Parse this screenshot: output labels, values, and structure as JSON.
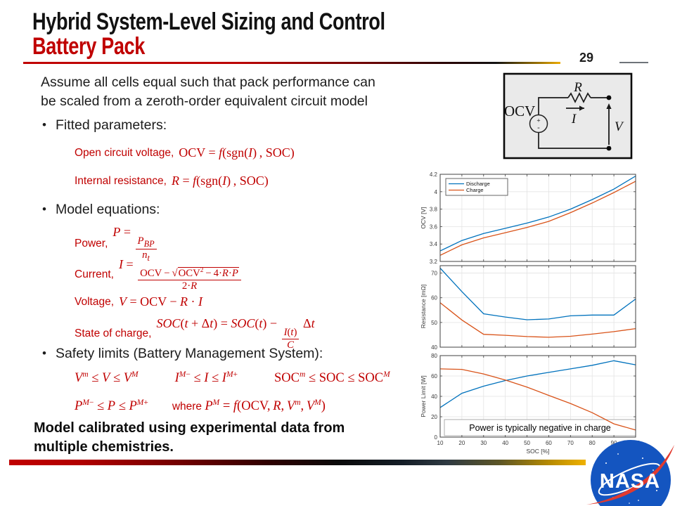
{
  "slide": {
    "title_line1": "Hybrid System-Level Sizing and Control",
    "title_line2": "Battery Pack",
    "page_number": "29",
    "intro_lines": [
      "Assume all cells equal such that pack performance can",
      "be scaled from a zeroth-order equivalent circuit model"
    ],
    "bullet_dot": "•",
    "bullet_fitted": "Fitted parameters:",
    "bullet_model": "Model equations:",
    "bullet_safety": "Safety limits (Battery Management System):",
    "closing_lines": [
      "Model calibrated using experimental data from",
      "multiple chemistries."
    ]
  },
  "equations": {
    "fitted": [
      {
        "label": "Open circuit voltage,",
        "math_html": "OCV = <i>f</i>(sgn(<i>I</i>)&#8201;, SOC)"
      },
      {
        "label": "Internal resistance,",
        "math_html": "<i>R</i> = <i>f</i>(sgn(<i>I</i>)&#8201;, SOC)"
      }
    ],
    "model": [
      {
        "label": "Power,",
        "math_html": "<i>P</i> = <span class='fr'><span class='nm'><i>P<sub>BP</sub></i></span><span class='dn'><i>n<sub>t</sub></i></span></span>"
      },
      {
        "label": "Current,",
        "math_html": "<i>I</i> = <span class='fr'><span class='nm'>OCV&#8201;&#8722;&#8201;<span class='sq'>&#8730;<span class='rd'>OCV<sup>2</sup>&#8201;&#8722;&#8201;4&#183;<i>R</i>&#183;<i>P</i></span></span></span><span class='dn'>2&#183;<i>R</i></span></span>"
      },
      {
        "label": "Voltage,",
        "math_html": "<i>V</i> = OCV &#8722; <i>R</i> &#183; <i>I</i>"
      },
      {
        "label": "State of charge,",
        "math_html": "<i>SOC</i>(<i>t</i> + &#916;<i>t</i>) = <i>SOC</i>(<i>t</i>) &#8722; <span class='fr'><span class='nm'><i>I</i>(<i>t</i>)</span><span class='dn'><i>C</i></span></span>&#8201;&#916;<i>t</i>"
      }
    ],
    "safety_row1": [
      "<i>V</i><sup><i>m</i></sup> &#8804; <i>V</i> &#8804; <i>V</i><sup><i>M</i></sup>",
      "<i>I</i><sup><i>M</i>&#8722;</sup> &#8804; <i>I</i> &#8804; <i>I</i><sup><i>M</i>+</sup>",
      "SOC<sup><i>m</i></sup> &#8804; SOC &#8804; SOC<sup><i>M</i></sup>"
    ],
    "safety_row2": [
      "<i>P</i><sup><i>M</i>&#8722;</sup> &#8804; <i>P</i> &#8804; <i>P</i><sup><i>M</i>+</sup>",
      "<span class='kw'>where </span><i>P</i><sup><i>M</i></sup> = <i>f</i>(OCV,&#8201;<i>R</i>,&#8201;<i>V</i><sup><i>m</i></sup>,&#8201;<i>V</i><sup><i>M</i></sup>)"
    ]
  },
  "circuit": {
    "ocv": "OCV",
    "r": "R",
    "i": "I",
    "v": "V",
    "plus": "+",
    "minus": "-"
  },
  "nasa": {
    "wordmark": "NASA"
  },
  "colors": {
    "accent_red": "#C00000",
    "discharge_blue": "#0072BD",
    "charge_orange": "#D95319",
    "nasa_blue": "#1455C0",
    "nasa_red": "#E23A2E",
    "gold": "#EDAC00"
  },
  "chart_data": [
    {
      "type": "line",
      "ylabel": "OCV [V]",
      "x": [
        10,
        20,
        30,
        40,
        50,
        60,
        70,
        80,
        90,
        100
      ],
      "xlim": [
        10,
        100
      ],
      "xticks": [
        10,
        20,
        30,
        40,
        50,
        60,
        70,
        80,
        90,
        100
      ],
      "ylim": [
        3.2,
        4.2
      ],
      "yticks": [
        3.2,
        3.4,
        3.6,
        3.8,
        4,
        4.2
      ],
      "ytick_labels": [
        "3.2",
        "3.4",
        "3.6",
        "3.8",
        "4",
        "4.2"
      ],
      "grid": true,
      "show_x_labels": false,
      "legend": {
        "position": "top-left"
      },
      "series": [
        {
          "name": "Discharge",
          "color": "#0072BD",
          "values": [
            3.32,
            3.44,
            3.52,
            3.58,
            3.64,
            3.71,
            3.8,
            3.91,
            4.03,
            4.18
          ]
        },
        {
          "name": "Charge",
          "color": "#D95319",
          "values": [
            3.27,
            3.39,
            3.47,
            3.53,
            3.59,
            3.66,
            3.76,
            3.87,
            3.99,
            4.12
          ]
        }
      ]
    },
    {
      "type": "line",
      "ylabel": "Resistance [mΩ]",
      "x": [
        10,
        20,
        30,
        40,
        50,
        60,
        70,
        80,
        90,
        100
      ],
      "xlim": [
        10,
        100
      ],
      "xticks": [
        10,
        20,
        30,
        40,
        50,
        60,
        70,
        80,
        90,
        100
      ],
      "ylim": [
        40,
        73
      ],
      "yticks": [
        40,
        50,
        60,
        70
      ],
      "ytick_labels": [
        "40",
        "50",
        "60",
        "70"
      ],
      "grid": true,
      "show_x_labels": false,
      "series": [
        {
          "name": "Discharge",
          "color": "#0072BD",
          "values": [
            72,
            62.5,
            53.5,
            52.2,
            51.1,
            51.4,
            52.7,
            53.0,
            53.0,
            59.5
          ]
        },
        {
          "name": "Charge",
          "color": "#D95319",
          "values": [
            58,
            51,
            45.2,
            44.8,
            44.3,
            44.0,
            44.4,
            45.3,
            46.3,
            47.5
          ]
        }
      ]
    },
    {
      "type": "line",
      "ylabel": "Power Limit [W]",
      "xlabel": "SOC [%]",
      "x": [
        10,
        20,
        30,
        40,
        50,
        60,
        70,
        80,
        90,
        100
      ],
      "xlim": [
        10,
        100
      ],
      "xticks": [
        10,
        20,
        30,
        40,
        50,
        60,
        70,
        80,
        90,
        100
      ],
      "ylim": [
        0,
        80
      ],
      "yticks": [
        0,
        20,
        40,
        60,
        80
      ],
      "ytick_labels": [
        "0",
        "20",
        "40",
        "60",
        "80"
      ],
      "grid": true,
      "show_x_labels": true,
      "annotation": "Power is typically negative in charge",
      "series": [
        {
          "name": "Discharge",
          "color": "#0072BD",
          "values": [
            29,
            43,
            50,
            55.5,
            60,
            63.5,
            67,
            70.5,
            75,
            71
          ]
        },
        {
          "name": "Charge",
          "color": "#D95319",
          "values": [
            67,
            66.5,
            62,
            56,
            49,
            41,
            33,
            24,
            13,
            7
          ]
        }
      ]
    }
  ]
}
